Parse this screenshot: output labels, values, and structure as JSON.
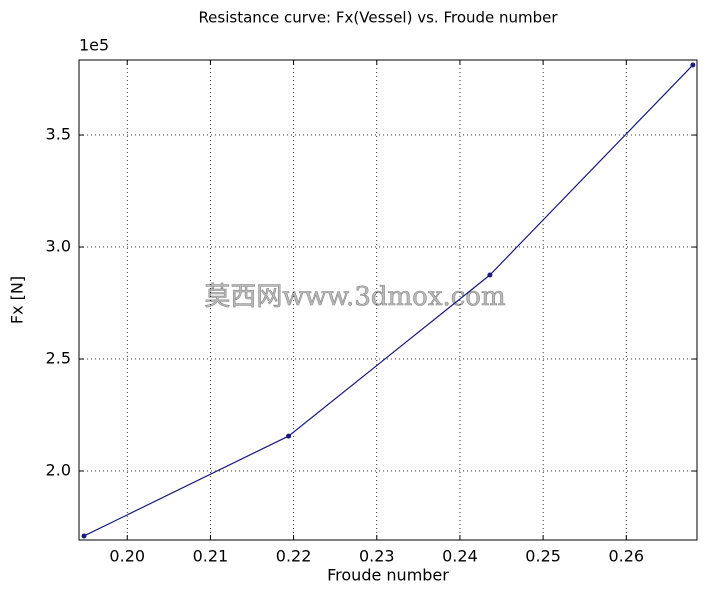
{
  "chart_data": {
    "type": "line",
    "title": "Resistance curve: Fx(Vessel) vs. Froude number",
    "x_label": "Froude number",
    "y_label": "Fx [N]",
    "y_offset_label": "1e5",
    "watermark": "莫西网www.3dmox.com",
    "x": [
      0.1948,
      0.2194,
      0.2436,
      0.268
    ],
    "series": [
      {
        "name": "Fx(Vessel)",
        "color": "#1a1a80",
        "values": [
          1.71,
          2.156,
          2.875,
          3.8125
        ]
      }
    ],
    "xlim": [
      0.1942,
      0.2685
    ],
    "ylim": [
      1.692,
      3.835
    ],
    "xticks": [
      {
        "value": 0.2,
        "label": "0.20"
      },
      {
        "value": 0.21,
        "label": "0.21"
      },
      {
        "value": 0.22,
        "label": "0.22"
      },
      {
        "value": 0.23,
        "label": "0.23"
      },
      {
        "value": 0.24,
        "label": "0.24"
      },
      {
        "value": 0.25,
        "label": "0.25"
      },
      {
        "value": 0.26,
        "label": "0.26"
      }
    ],
    "yticks": [
      {
        "value": 2,
        "label": "2.0"
      },
      {
        "value": 2.5,
        "label": "2.5"
      },
      {
        "value": 3,
        "label": "3.0"
      },
      {
        "value": 3.5,
        "label": "3.5"
      }
    ],
    "grid": true
  }
}
